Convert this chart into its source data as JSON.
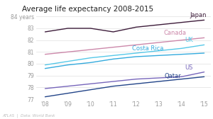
{
  "title": "Average life expectancy 2008-2015",
  "years": [
    2008,
    2009,
    2010,
    2011,
    2012,
    2013,
    2014,
    2015
  ],
  "series": {
    "Japan": [
      82.7,
      83.0,
      83.0,
      82.7,
      83.1,
      83.3,
      83.5,
      83.7
    ],
    "Canada": [
      80.8,
      81.0,
      81.2,
      81.4,
      81.6,
      81.8,
      82.0,
      82.2
    ],
    "UK": [
      79.9,
      80.2,
      80.5,
      80.7,
      80.9,
      81.1,
      81.3,
      81.6
    ],
    "Costa Rica": [
      79.6,
      79.9,
      80.1,
      80.4,
      80.6,
      80.7,
      80.8,
      80.9
    ],
    "US": [
      77.9,
      78.1,
      78.3,
      78.5,
      78.7,
      78.8,
      78.9,
      79.3
    ],
    "Qatar": [
      77.2,
      77.5,
      77.8,
      78.1,
      78.3,
      78.5,
      78.7,
      78.9
    ]
  },
  "colors": {
    "Japan": "#3d1c3a",
    "Canada": "#cc88aa",
    "UK": "#55c8e8",
    "Costa Rica": "#33aadd",
    "US": "#7766bb",
    "Qatar": "#224488"
  },
  "label_y_offsets": {
    "Japan": 0.0,
    "Canada": 0.0,
    "UK": 0.0,
    "Costa Rica": 0.0,
    "US": 0.0,
    "Qatar": 0.0
  },
  "ylim": [
    77,
    84.2
  ],
  "yticks": [
    77,
    78,
    79,
    80,
    81,
    82,
    83,
    84
  ],
  "ylabel_top": "84 years",
  "background_color": "#ffffff",
  "grid_color": "#e0e0e0",
  "atlas_text": "ATLAS  |  Data: World Bank",
  "title_fontsize": 7.5,
  "label_fontsize": 6.0,
  "tick_fontsize": 5.5
}
